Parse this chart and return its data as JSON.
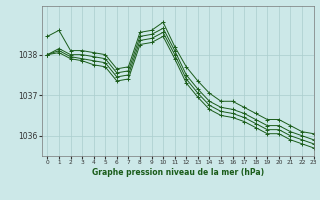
{
  "background_color": "#cce8e8",
  "grid_color": "#aacece",
  "line_color": "#1a5c1a",
  "marker_color": "#1a5c1a",
  "xlabel": "Graphe pression niveau de la mer (hPa)",
  "ylim": [
    1035.5,
    1039.2
  ],
  "xlim": [
    -0.5,
    23
  ],
  "yticks": [
    1036,
    1037,
    1038
  ],
  "xticks": [
    0,
    1,
    2,
    3,
    4,
    5,
    6,
    7,
    8,
    9,
    10,
    11,
    12,
    13,
    14,
    15,
    16,
    17,
    18,
    19,
    20,
    21,
    22,
    23
  ],
  "series": [
    [
      1038.45,
      1038.6,
      1038.1,
      1038.1,
      1038.05,
      1038.0,
      1037.65,
      1037.7,
      1038.55,
      1038.6,
      1038.8,
      1038.2,
      1037.7,
      1037.35,
      1037.05,
      1036.85,
      1036.85,
      1036.7,
      1036.55,
      1036.4,
      1036.4,
      1036.25,
      1036.1,
      1036.05
    ],
    [
      1038.0,
      1038.15,
      1038.0,
      1038.0,
      1037.95,
      1037.9,
      1037.55,
      1037.6,
      1038.45,
      1038.5,
      1038.65,
      1038.1,
      1037.5,
      1037.15,
      1036.85,
      1036.7,
      1036.65,
      1036.55,
      1036.4,
      1036.25,
      1036.25,
      1036.1,
      1036.0,
      1035.9
    ],
    [
      1038.0,
      1038.1,
      1037.95,
      1037.9,
      1037.85,
      1037.8,
      1037.45,
      1037.5,
      1038.35,
      1038.4,
      1038.55,
      1038.0,
      1037.4,
      1037.05,
      1036.75,
      1036.6,
      1036.55,
      1036.45,
      1036.3,
      1036.15,
      1036.15,
      1036.0,
      1035.9,
      1035.8
    ],
    [
      1038.0,
      1038.05,
      1037.9,
      1037.85,
      1037.75,
      1037.7,
      1037.35,
      1037.4,
      1038.25,
      1038.3,
      1038.45,
      1037.9,
      1037.3,
      1036.95,
      1036.65,
      1036.5,
      1036.45,
      1036.35,
      1036.2,
      1036.05,
      1036.05,
      1035.9,
      1035.8,
      1035.7
    ]
  ]
}
